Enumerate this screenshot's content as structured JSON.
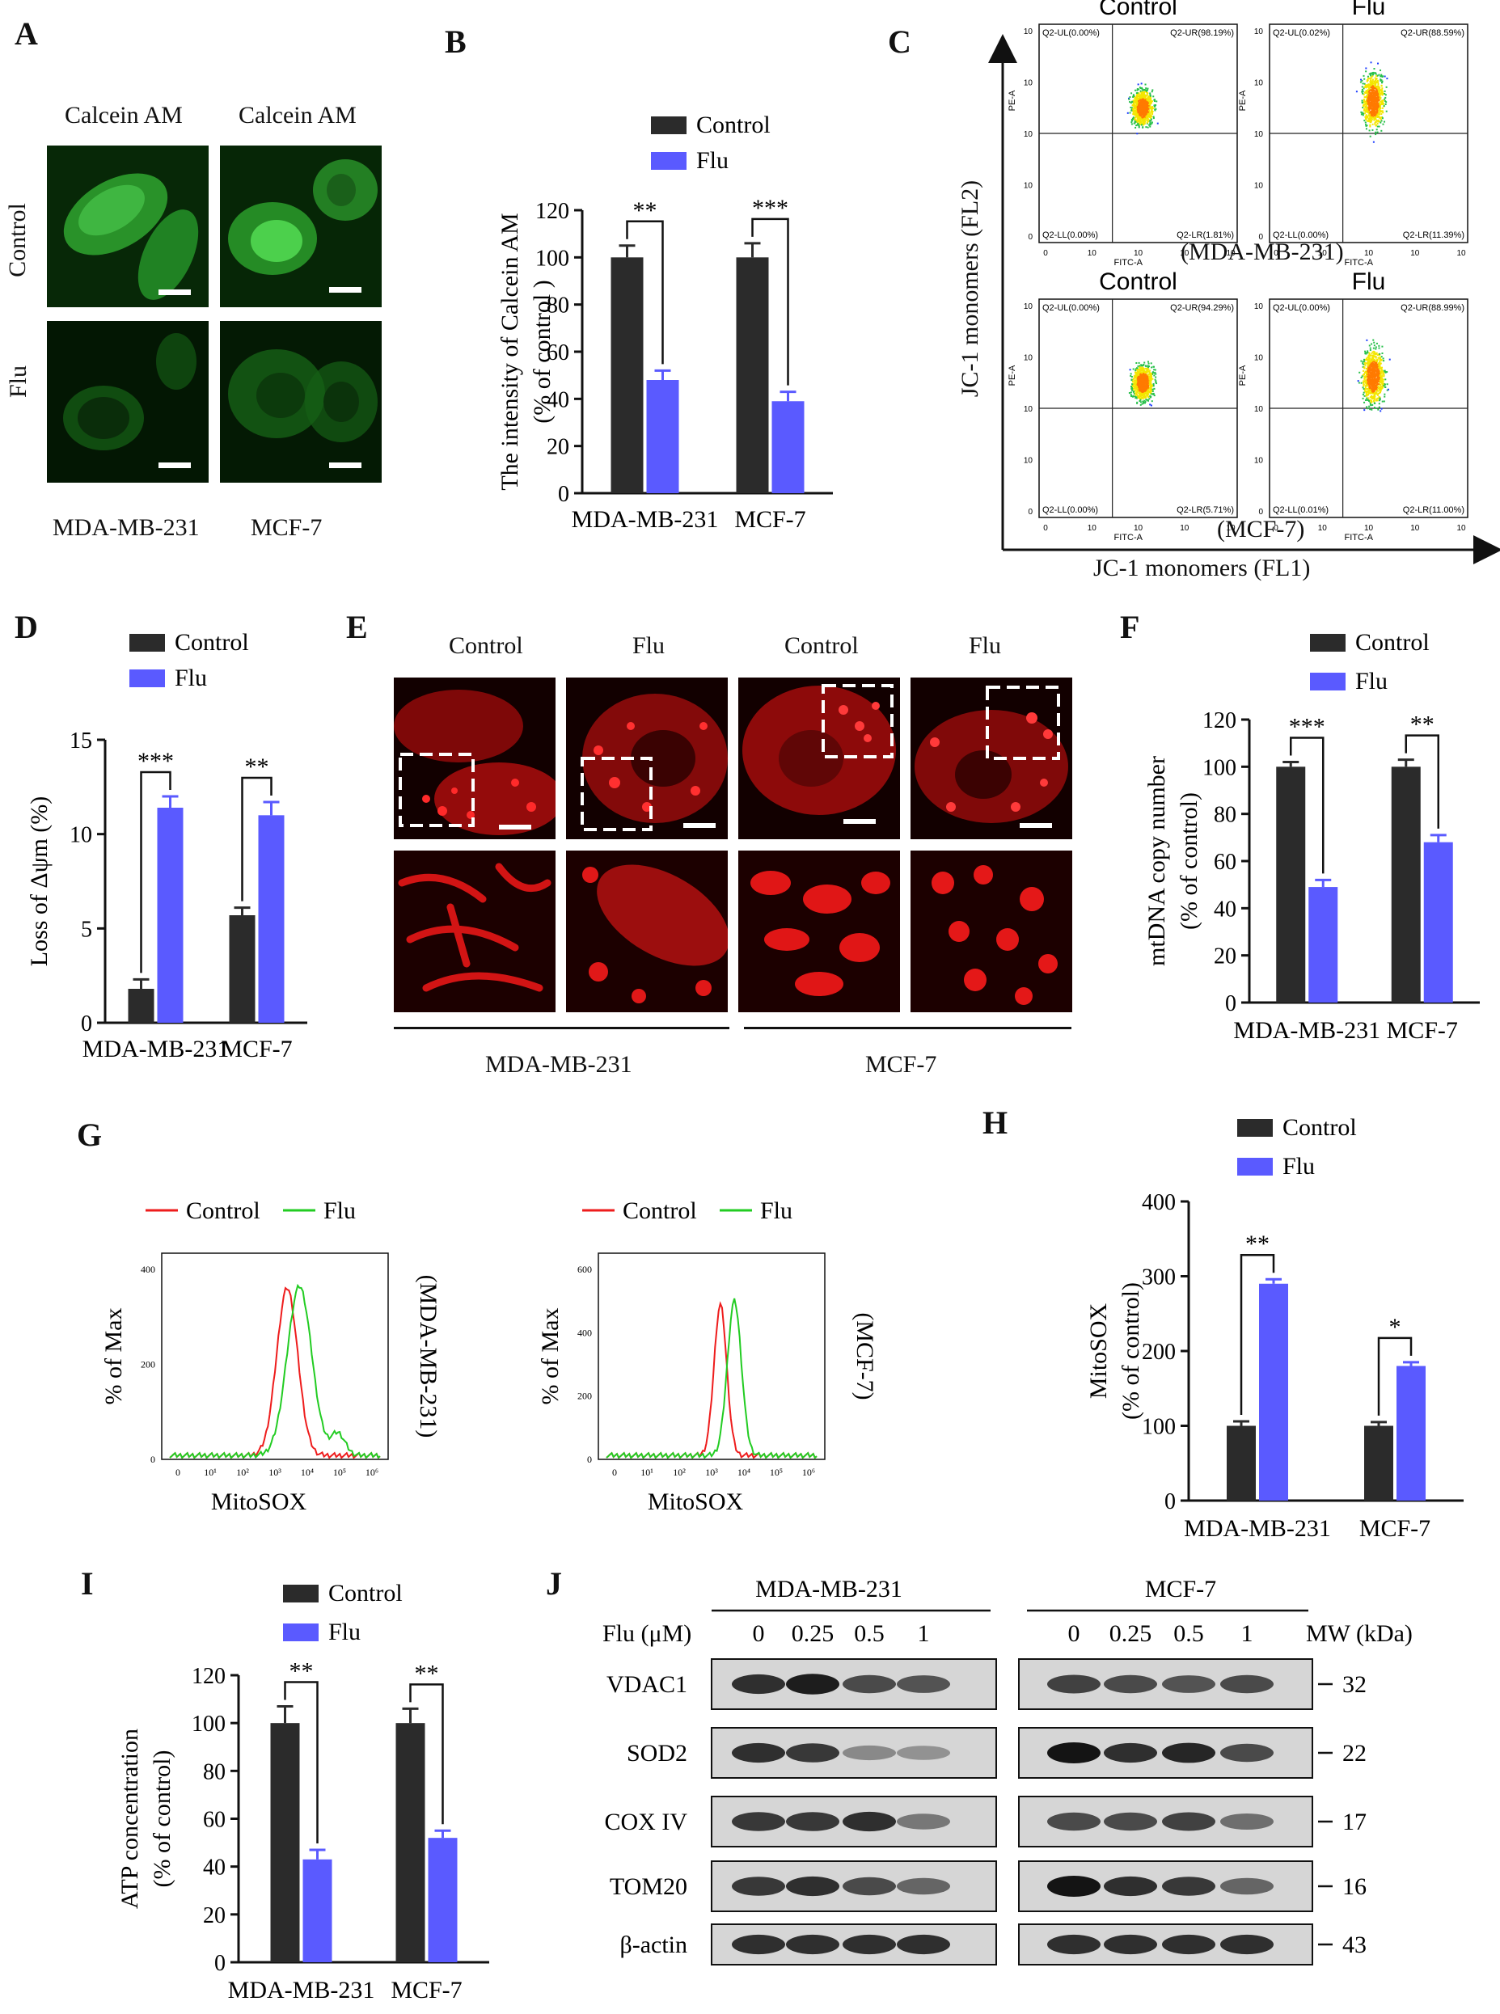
{
  "colors": {
    "control": "#2b2b2b",
    "flu": "#5a5aff",
    "green_cell": "#2aa32a",
    "red_cell": "#e01010",
    "hist_control": "#ee1c1c",
    "hist_flu": "#22cc22"
  },
  "panelA": {
    "label": "A",
    "col_titles": [
      "Calcein AM",
      "Calcein AM"
    ],
    "row_labels": [
      "Control",
      "Flu"
    ],
    "col_labels": [
      "MDA-MB-231",
      "MCF-7"
    ]
  },
  "panelB": {
    "label": "B",
    "legend": [
      "Control",
      "Flu"
    ],
    "ylabel": "The intensity of Calcein AM\n(% of  control )",
    "chart_data": {
      "type": "bar",
      "categories": [
        "MDA-MB-231",
        "MCF-7"
      ],
      "series": [
        {
          "name": "Control",
          "values": [
            100,
            100
          ],
          "errors": [
            5,
            6
          ]
        },
        {
          "name": "Flu",
          "values": [
            48,
            39
          ],
          "errors": [
            4,
            4
          ]
        }
      ],
      "ylim": [
        0,
        120
      ],
      "yticks": [
        0,
        20,
        40,
        60,
        80,
        100,
        120
      ],
      "significance": [
        "**",
        "***"
      ]
    }
  },
  "panelC": {
    "label": "C",
    "yaxis": "JC-1 monomers (FL2)",
    "xaxis": "JC-1 monomers (FL1)",
    "row_labels": [
      "(MDA-MB-231)",
      "(MCF-7)"
    ],
    "plots": [
      {
        "title": "Control",
        "UL": "Q2-UL(0.00%)",
        "UR": "Q2-UR(98.19%)",
        "LL": "Q2-LL(0.00%)",
        "LR": "Q2-LR(1.81%)"
      },
      {
        "title": "Flu",
        "UL": "Q2-UL(0.02%)",
        "UR": "Q2-UR(88.59%)",
        "LL": "Q2-LL(0.00%)",
        "LR": "Q2-LR(11.39%)"
      },
      {
        "title": "Control",
        "UL": "Q2-UL(0.00%)",
        "UR": "Q2-UR(94.29%)",
        "LL": "Q2-LL(0.00%)",
        "LR": "Q2-LR(5.71%)"
      },
      {
        "title": "Flu",
        "UL": "Q2-UL(0.00%)",
        "UR": "Q2-UR(88.99%)",
        "LL": "Q2-LL(0.01%)",
        "LR": "Q2-LR(11.00%)"
      }
    ],
    "axis_y_name": "PE-A",
    "axis_x_name": "FITC-A",
    "ticks": [
      "0",
      "10",
      "10",
      "10",
      "10"
    ]
  },
  "panelD": {
    "label": "D",
    "legend": [
      "Control",
      "Flu"
    ],
    "ylabel": "Loss of Δψm (%)",
    "chart_data": {
      "type": "bar",
      "categories": [
        "MDA-MB-231",
        "MCF-7"
      ],
      "series": [
        {
          "name": "Control",
          "values": [
            1.8,
            5.7
          ],
          "errors": [
            0.5,
            0.4
          ]
        },
        {
          "name": "Flu",
          "values": [
            11.4,
            11.0
          ],
          "errors": [
            0.6,
            0.7
          ]
        }
      ],
      "ylim": [
        0,
        15
      ],
      "yticks": [
        0,
        5,
        10,
        15
      ],
      "significance": [
        "***",
        "**"
      ]
    }
  },
  "panelE": {
    "label": "E",
    "col_titles": [
      "Control",
      "Flu",
      "Control",
      "Flu"
    ],
    "group_labels": [
      "MDA-MB-231",
      "MCF-7"
    ]
  },
  "panelF": {
    "label": "F",
    "legend": [
      "Control",
      "Flu"
    ],
    "ylabel": "mtDNA copy number\n(% of control)",
    "chart_data": {
      "type": "bar",
      "categories": [
        "MDA-MB-231",
        "MCF-7"
      ],
      "series": [
        {
          "name": "Control",
          "values": [
            100,
            100
          ],
          "errors": [
            2,
            3
          ]
        },
        {
          "name": "Flu",
          "values": [
            49,
            68
          ],
          "errors": [
            3,
            3
          ]
        }
      ],
      "ylim": [
        0,
        120
      ],
      "yticks": [
        0,
        20,
        40,
        60,
        80,
        100,
        120
      ],
      "significance": [
        "***",
        "**"
      ]
    }
  },
  "panelG": {
    "label": "G",
    "legend": [
      "Control",
      "Flu"
    ],
    "ylabel": "% of Max",
    "xlabel": "MitoSOX",
    "plots": [
      {
        "side_label": "(MDA-MB-231)",
        "yticks": [
          "0",
          "200",
          "400"
        ],
        "ymax": 400,
        "xticks": [
          "0",
          "10¹",
          "10²",
          "10³",
          "10⁴",
          "10⁵",
          "10⁶"
        ]
      },
      {
        "side_label": "(MCF-7)",
        "yticks": [
          "0",
          "200",
          "400",
          "600"
        ],
        "ymax": 600,
        "xticks": [
          "0",
          "10¹",
          "10²",
          "10³",
          "10⁴",
          "10⁵",
          "10⁶"
        ]
      }
    ]
  },
  "panelH": {
    "label": "H",
    "legend": [
      "Control",
      "Flu"
    ],
    "ylabel": "MitoSOX\n(% of control)",
    "chart_data": {
      "type": "bar",
      "categories": [
        "MDA-MB-231",
        "MCF-7"
      ],
      "series": [
        {
          "name": "Control",
          "values": [
            100,
            100
          ],
          "errors": [
            6,
            5
          ]
        },
        {
          "name": "Flu",
          "values": [
            290,
            180
          ],
          "errors": [
            6,
            5
          ]
        }
      ],
      "ylim": [
        0,
        400
      ],
      "yticks": [
        0,
        100,
        200,
        300,
        400
      ],
      "significance": [
        "**",
        "*"
      ]
    }
  },
  "panelI": {
    "label": "I",
    "legend": [
      "Control",
      "Flu"
    ],
    "ylabel": "ATP concentration\n(% of control)",
    "chart_data": {
      "type": "bar",
      "categories": [
        "MDA-MB-231",
        "MCF-7"
      ],
      "series": [
        {
          "name": "Control",
          "values": [
            100,
            100
          ],
          "errors": [
            7,
            6
          ]
        },
        {
          "name": "Flu",
          "values": [
            43,
            52
          ],
          "errors": [
            4,
            3
          ]
        }
      ],
      "ylim": [
        0,
        120
      ],
      "yticks": [
        0,
        20,
        40,
        60,
        80,
        100,
        120
      ],
      "significance": [
        "**",
        "**"
      ]
    }
  },
  "panelJ": {
    "label": "J",
    "group_labels": [
      "MDA-MB-231",
      "MCF-7"
    ],
    "dose_label": "Flu (μM)",
    "doses": [
      "0",
      "0.25",
      "0.5",
      "1",
      "0",
      "0.25",
      "0.5",
      "1"
    ],
    "mw_label": "MW (kDa)",
    "rows": [
      {
        "name": "VDAC1",
        "mw": "32",
        "intensity": [
          0.85,
          0.95,
          0.7,
          0.65,
          0.75,
          0.7,
          0.65,
          0.7
        ]
      },
      {
        "name": "SOD2",
        "mw": "22",
        "intensity": [
          0.85,
          0.8,
          0.35,
          0.3,
          1.0,
          0.85,
          0.9,
          0.7
        ]
      },
      {
        "name": "COX IV",
        "mw": "17",
        "intensity": [
          0.8,
          0.8,
          0.85,
          0.45,
          0.7,
          0.7,
          0.75,
          0.5
        ]
      },
      {
        "name": "TOM20",
        "mw": "16",
        "intensity": [
          0.8,
          0.85,
          0.7,
          0.55,
          1.0,
          0.85,
          0.8,
          0.55
        ]
      },
      {
        "name": "β-actin",
        "mw": "43",
        "intensity": [
          0.85,
          0.85,
          0.85,
          0.85,
          0.85,
          0.85,
          0.85,
          0.85
        ]
      }
    ]
  }
}
